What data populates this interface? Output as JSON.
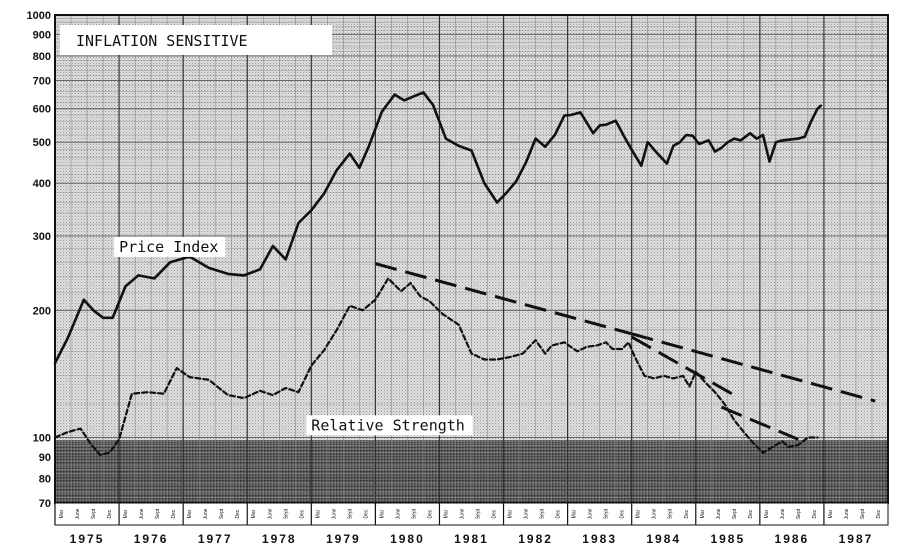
{
  "chart_data": {
    "type": "line",
    "title": "INFLATION SENSITIVE",
    "y_scale": "log",
    "ylim": [
      70,
      1000
    ],
    "y_ticks": [
      1000,
      900,
      800,
      700,
      600,
      500,
      400,
      300,
      200,
      100,
      90,
      80,
      70
    ],
    "y_tick_labels": [
      "1000",
      "900",
      "800",
      "700",
      "600",
      "500",
      "400",
      "300",
      "200",
      "100",
      "90",
      "80",
      "70"
    ],
    "xlim": [
      1975.0,
      1988.0
    ],
    "years": [
      "1975",
      "1976",
      "1977",
      "1978",
      "1979",
      "1980",
      "1981",
      "1982",
      "1983",
      "1984",
      "1985",
      "1986",
      "1987"
    ],
    "month_labels": [
      "Mar",
      "June",
      "Sept",
      "Dec"
    ],
    "grid": true,
    "series": [
      {
        "name": "Price Index",
        "style": "solid",
        "color": "#111111",
        "x": [
          1975.0,
          1975.2,
          1975.45,
          1975.6,
          1975.75,
          1975.9,
          1976.1,
          1976.3,
          1976.55,
          1976.8,
          1977.1,
          1977.4,
          1977.7,
          1977.95,
          1978.2,
          1978.4,
          1978.6,
          1978.8,
          1979.0,
          1979.2,
          1979.4,
          1979.6,
          1979.75,
          1979.9,
          1980.1,
          1980.3,
          1980.45,
          1980.6,
          1980.75,
          1980.9,
          1981.1,
          1981.3,
          1981.5,
          1981.7,
          1981.9,
          1982.05,
          1982.2,
          1982.35,
          1982.5,
          1982.65,
          1982.8,
          1982.95,
          1983.05,
          1983.2,
          1983.4,
          1983.5,
          1983.6,
          1983.75,
          1983.9,
          1984.0,
          1984.15,
          1984.25,
          1984.35,
          1984.45,
          1984.55,
          1984.65,
          1984.75,
          1984.85,
          1984.95,
          1985.05,
          1985.2,
          1985.3,
          1985.4,
          1985.5,
          1985.6,
          1985.7,
          1985.85,
          1985.95,
          1986.05,
          1986.15,
          1986.25,
          1986.35,
          1986.5,
          1986.6,
          1986.7,
          1986.8,
          1986.9,
          1986.95
        ],
        "y": [
          150,
          172,
          212,
          200,
          192,
          192,
          228,
          242,
          238,
          260,
          268,
          252,
          244,
          242,
          250,
          284,
          264,
          322,
          345,
          378,
          430,
          470,
          435,
          490,
          590,
          648,
          628,
          642,
          656,
          612,
          510,
          490,
          478,
          400,
          360,
          380,
          405,
          448,
          510,
          488,
          520,
          578,
          580,
          588,
          525,
          548,
          550,
          562,
          510,
          480,
          440,
          500,
          480,
          462,
          445,
          490,
          500,
          520,
          518,
          495,
          505,
          475,
          485,
          500,
          510,
          505,
          525,
          510,
          520,
          450,
          500,
          505,
          508,
          510,
          515,
          560,
          600,
          610
        ]
      },
      {
        "name": "Relative Strength",
        "style": "dashed",
        "color": "#111111",
        "x": [
          1975.0,
          1975.2,
          1975.4,
          1975.55,
          1975.7,
          1975.85,
          1976.0,
          1976.2,
          1976.45,
          1976.7,
          1976.9,
          1977.1,
          1977.4,
          1977.7,
          1977.95,
          1978.2,
          1978.4,
          1978.6,
          1978.8,
          1979.0,
          1979.2,
          1979.4,
          1979.6,
          1979.8,
          1980.0,
          1980.2,
          1980.4,
          1980.55,
          1980.7,
          1980.85,
          1981.05,
          1981.3,
          1981.5,
          1981.7,
          1981.9,
          1982.1,
          1982.3,
          1982.5,
          1982.65,
          1982.75,
          1982.95,
          1983.15,
          1983.3,
          1983.45,
          1983.6,
          1983.7,
          1983.85,
          1983.95,
          1984.05,
          1984.2,
          1984.35,
          1984.5,
          1984.65,
          1984.8,
          1984.9,
          1985.0,
          1985.15,
          1985.3,
          1985.45,
          1985.6,
          1985.75,
          1985.9,
          1986.05,
          1986.2,
          1986.35,
          1986.45,
          1986.6,
          1986.75,
          1986.9
        ],
        "y": [
          100,
          103,
          105,
          97,
          91,
          92,
          99,
          127,
          128,
          127,
          146,
          139,
          137,
          126,
          124,
          129,
          126,
          131,
          128,
          148,
          161,
          180,
          205,
          200,
          212,
          238,
          222,
          232,
          216,
          210,
          196,
          185,
          158,
          153,
          153,
          155,
          158,
          170,
          158,
          165,
          168,
          160,
          164,
          165,
          168,
          162,
          162,
          168,
          155,
          140,
          138,
          140,
          138,
          140,
          132,
          143,
          135,
          128,
          120,
          110,
          103,
          97,
          92,
          95,
          98,
          95,
          96,
          100,
          100
        ]
      }
    ],
    "trendlines": [
      {
        "x": [
          1980.0,
          1984.0
        ],
        "y": [
          258,
          176
        ]
      },
      {
        "x": [
          1984.0,
          1987.8
        ],
        "y": [
          176,
          122
        ]
      },
      {
        "x": [
          1984.0,
          1985.6
        ],
        "y": [
          173,
          126
        ]
      },
      {
        "x": [
          1985.4,
          1986.6
        ],
        "y": [
          118,
          99
        ]
      }
    ],
    "annotations": [
      {
        "text": "Price Index",
        "x": 1976.0,
        "y": 275
      },
      {
        "text": "Relative Strength",
        "x": 1979.0,
        "y": 104
      }
    ]
  }
}
